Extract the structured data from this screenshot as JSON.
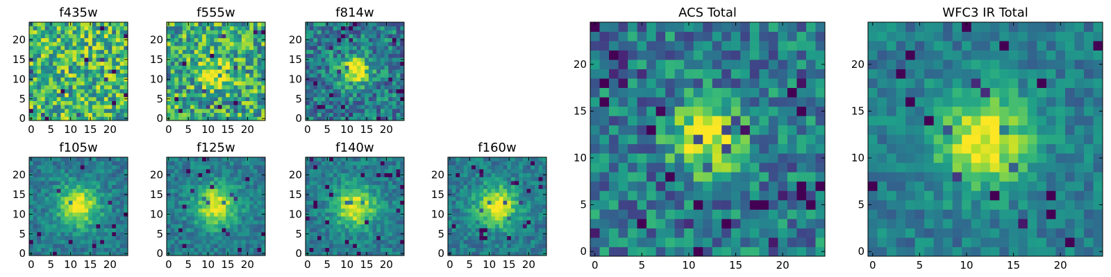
{
  "chart_data": {
    "type": "heatmap",
    "colormap": "viridis",
    "panels": [
      {
        "id": "f435w",
        "title": "f435w",
        "grid_size": 25,
        "xlim": [
          0,
          24
        ],
        "ylim": [
          0,
          24
        ],
        "xticks": [
          0,
          5,
          10,
          15,
          20
        ],
        "yticks": [
          0,
          5,
          10,
          15,
          20
        ],
        "source_peak": null,
        "noise": "high"
      },
      {
        "id": "f555w",
        "title": "f555w",
        "grid_size": 25,
        "xlim": [
          0,
          24
        ],
        "ylim": [
          0,
          24
        ],
        "xticks": [
          0,
          5,
          10,
          15,
          20
        ],
        "yticks": [
          0,
          5,
          10,
          15,
          20
        ],
        "source_peak": [
          12,
          12
        ],
        "noise": "high"
      },
      {
        "id": "f814w",
        "title": "f814w",
        "grid_size": 25,
        "xlim": [
          0,
          24
        ],
        "ylim": [
          0,
          24
        ],
        "xticks": [
          0,
          5,
          10,
          15,
          20
        ],
        "yticks": [
          0,
          5,
          10,
          15,
          20
        ],
        "source_peak": [
          12,
          12
        ],
        "noise": "medium"
      },
      {
        "id": "f105w",
        "title": "f105w",
        "grid_size": 25,
        "xlim": [
          0,
          24
        ],
        "ylim": [
          0,
          24
        ],
        "xticks": [
          0,
          5,
          10,
          15,
          20
        ],
        "yticks": [
          0,
          5,
          10,
          15,
          20
        ],
        "source_peak": [
          12,
          12
        ],
        "noise": "low"
      },
      {
        "id": "f125w",
        "title": "f125w",
        "grid_size": 25,
        "xlim": [
          0,
          24
        ],
        "ylim": [
          0,
          24
        ],
        "xticks": [
          0,
          5,
          10,
          15,
          20
        ],
        "yticks": [
          0,
          5,
          10,
          15,
          20
        ],
        "source_peak": [
          12,
          12
        ],
        "noise": "low"
      },
      {
        "id": "f140w",
        "title": "f140w",
        "grid_size": 25,
        "xlim": [
          0,
          24
        ],
        "ylim": [
          0,
          24
        ],
        "xticks": [
          0,
          5,
          10,
          15,
          20
        ],
        "yticks": [
          0,
          5,
          10,
          15,
          20
        ],
        "source_peak": [
          12,
          12
        ],
        "noise": "low"
      },
      {
        "id": "f160w",
        "title": "f160w",
        "grid_size": 25,
        "xlim": [
          0,
          24
        ],
        "ylim": [
          0,
          24
        ],
        "xticks": [
          0,
          5,
          10,
          15,
          20
        ],
        "yticks": [
          0,
          5,
          10,
          15,
          20
        ],
        "source_peak": [
          12,
          12
        ],
        "noise": "low"
      },
      {
        "id": "acs-total",
        "title": "ACS Total",
        "grid_size": 25,
        "xlim": [
          0,
          24
        ],
        "ylim": [
          0,
          24
        ],
        "xticks": [
          0,
          5,
          10,
          15,
          20
        ],
        "yticks": [
          0,
          5,
          10,
          15,
          20
        ],
        "source_peak": [
          12,
          12
        ],
        "noise": "medium"
      },
      {
        "id": "wfc3-ir-total",
        "title": "WFC3 IR Total",
        "grid_size": 25,
        "xlim": [
          0,
          24
        ],
        "ylim": [
          0,
          24
        ],
        "xticks": [
          0,
          5,
          10,
          15,
          20
        ],
        "yticks": [
          0,
          5,
          10,
          15,
          20
        ],
        "source_peak": [
          12,
          12
        ],
        "noise": "low"
      }
    ]
  }
}
